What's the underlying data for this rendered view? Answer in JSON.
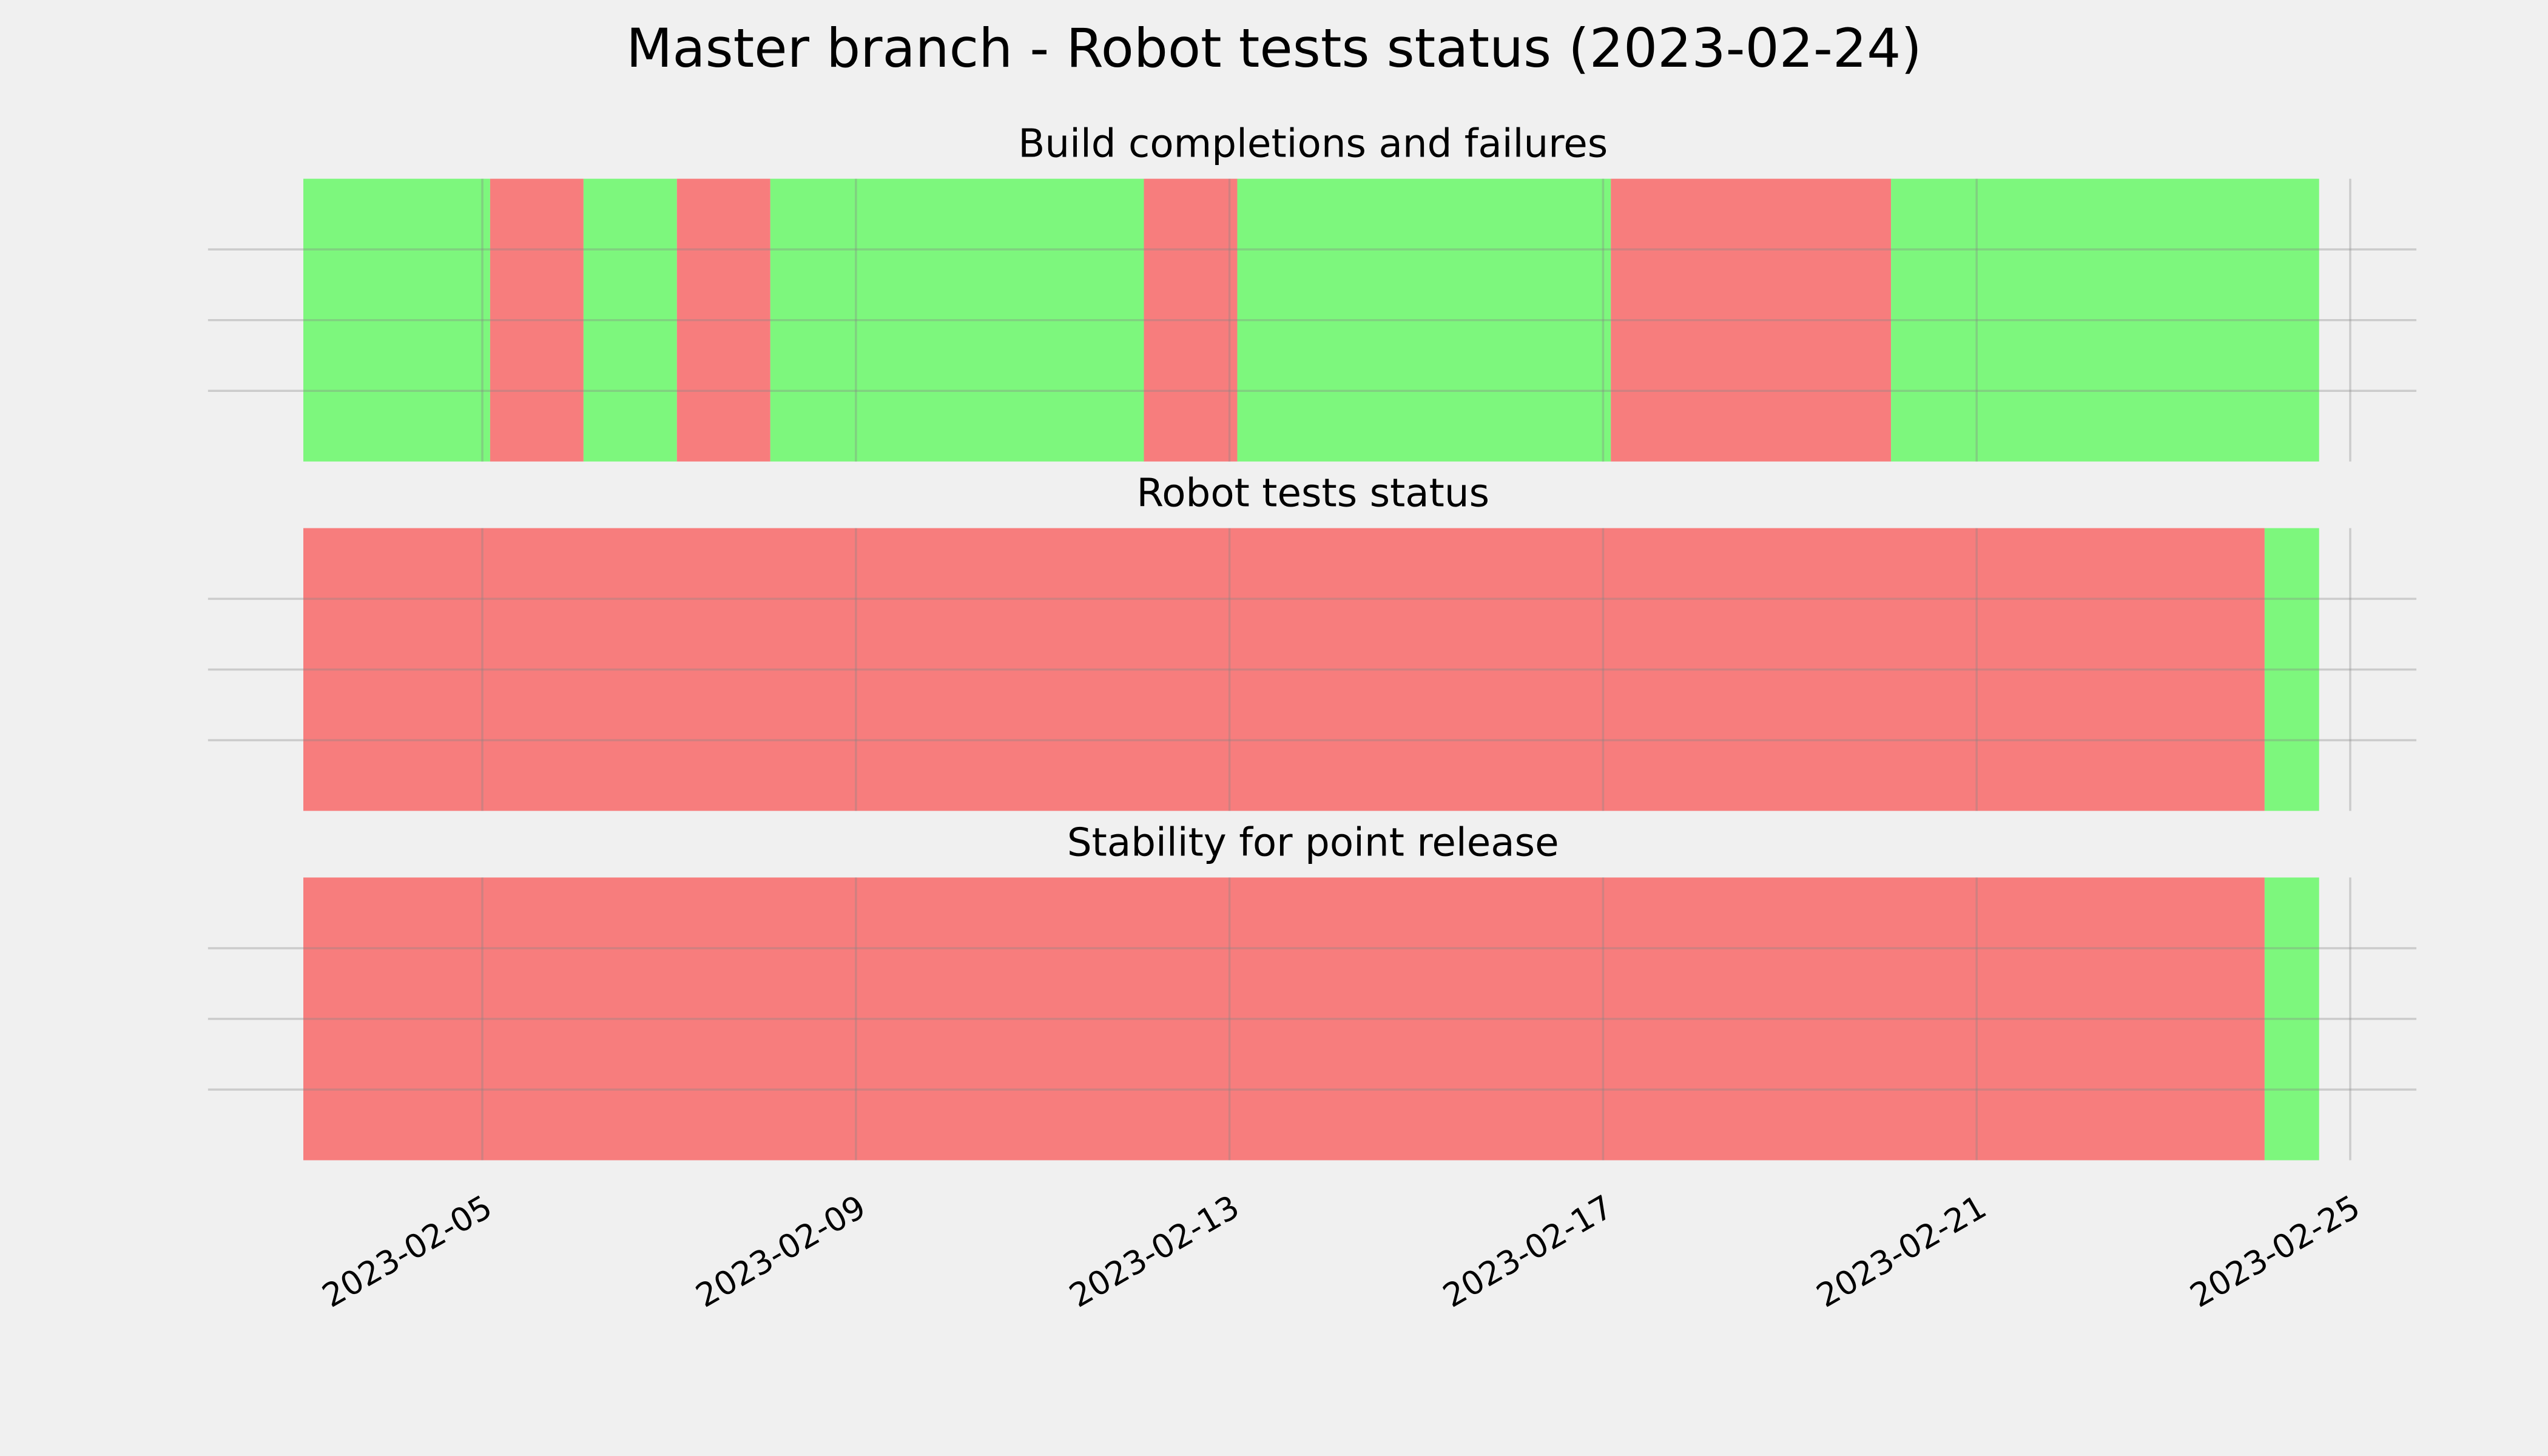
{
  "chart_data": [
    {
      "type": "timeline",
      "title": "Master branch - Robot tests status (2023-02-24)",
      "subtitle": "Build completions and failures",
      "segments": [
        {
          "start": "2023-02-03T02:00Z",
          "end": "2023-02-05T02:00Z",
          "color": "#76f776"
        },
        {
          "start": "2023-02-05T02:00Z",
          "end": "2023-02-06T02:00Z",
          "color": "#f77676"
        },
        {
          "start": "2023-02-06T02:00Z",
          "end": "2023-02-07T02:00Z",
          "color": "#76f776"
        },
        {
          "start": "2023-02-07T02:00Z",
          "end": "2023-02-08T02:00Z",
          "color": "#f77676"
        },
        {
          "start": "2023-02-08T02:00Z",
          "end": "2023-02-12T02:00Z",
          "color": "#76f776"
        },
        {
          "start": "2023-02-12T02:00Z",
          "end": "2023-02-13T02:00Z",
          "color": "#f77676"
        },
        {
          "start": "2023-02-13T02:00Z",
          "end": "2023-02-17T02:00Z",
          "color": "#76f776"
        },
        {
          "start": "2023-02-17T02:00Z",
          "end": "2023-02-20T02:00Z",
          "color": "#f77676"
        },
        {
          "start": "2023-02-20T02:00Z",
          "end": "2023-02-24T16:00Z",
          "color": "#76f776"
        }
      ],
      "xlim": [
        "2023-02-02T01:30Z",
        "2023-02-25T17:00Z"
      ],
      "xticks": [
        "2023-02-05",
        "2023-02-09",
        "2023-02-13",
        "2023-02-17",
        "2023-02-21",
        "2023-02-25"
      ],
      "ylim": [
        0,
        1
      ],
      "yticks": [
        0.25,
        0.5,
        0.75
      ],
      "grid": true
    },
    {
      "type": "timeline",
      "subtitle": "Robot tests status",
      "segments": [
        {
          "start": "2023-02-03T02:00Z",
          "end": "2023-02-24T02:00Z",
          "color": "#f77676"
        },
        {
          "start": "2023-02-24T02:00Z",
          "end": "2023-02-24T16:00Z",
          "color": "#76f776"
        }
      ],
      "xlim": [
        "2023-02-02T01:30Z",
        "2023-02-25T17:00Z"
      ],
      "xticks": [
        "2023-02-05",
        "2023-02-09",
        "2023-02-13",
        "2023-02-17",
        "2023-02-21",
        "2023-02-25"
      ],
      "ylim": [
        0,
        1
      ],
      "yticks": [
        0.25,
        0.5,
        0.75
      ],
      "grid": true
    },
    {
      "type": "timeline",
      "subtitle": "Stability for point release",
      "segments": [
        {
          "start": "2023-02-03T02:00Z",
          "end": "2023-02-24T02:00Z",
          "color": "#f77676"
        },
        {
          "start": "2023-02-24T02:00Z",
          "end": "2023-02-24T16:00Z",
          "color": "#76f776"
        }
      ],
      "xlim": [
        "2023-02-02T01:30Z",
        "2023-02-25T17:00Z"
      ],
      "xticks": [
        "2023-02-05",
        "2023-02-09",
        "2023-02-13",
        "2023-02-17",
        "2023-02-21",
        "2023-02-25"
      ],
      "ylim": [
        0,
        1
      ],
      "yticks": [
        0.25,
        0.5,
        0.75
      ],
      "grid": true,
      "show_xtick_labels": true
    }
  ]
}
